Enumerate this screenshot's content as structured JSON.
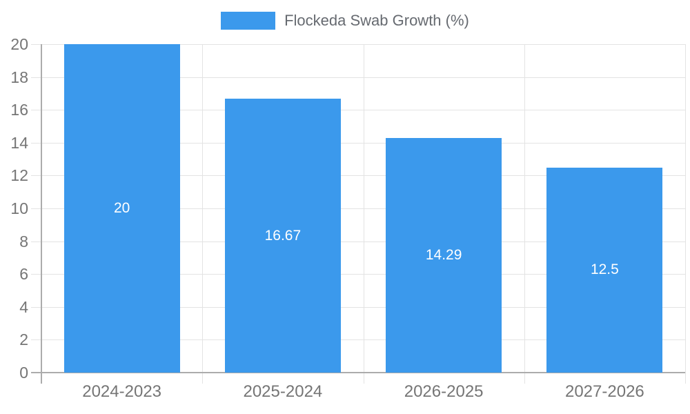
{
  "chart_data": {
    "type": "bar",
    "title": "Flockeda Swab Growth (%)",
    "legend": {
      "label": "Flockeda Swab Growth (%)",
      "position": "top-center",
      "swatch_color": "#3b99ec"
    },
    "categories": [
      "2024-2023",
      "2025-2024",
      "2026-2025",
      "2027-2026"
    ],
    "values": [
      20,
      16.67,
      14.29,
      12.5
    ],
    "bar_labels": [
      "20",
      "16.67",
      "14.29",
      "12.5"
    ],
    "xlabel": "",
    "ylabel": "",
    "ylim": [
      0,
      20
    ],
    "ytick_step": 2,
    "yticks": [
      0,
      2,
      4,
      6,
      8,
      10,
      12,
      14,
      16,
      18,
      20
    ],
    "grid": true,
    "legend_position": "top",
    "colors": {
      "bar": "#3b99ec",
      "bar_label_text": "#ffffff",
      "axis_text": "#757575",
      "legend_text": "#666a70",
      "gridline": "#e3e3e3",
      "axis_line": "#acacac",
      "background": "#ffffff"
    }
  }
}
